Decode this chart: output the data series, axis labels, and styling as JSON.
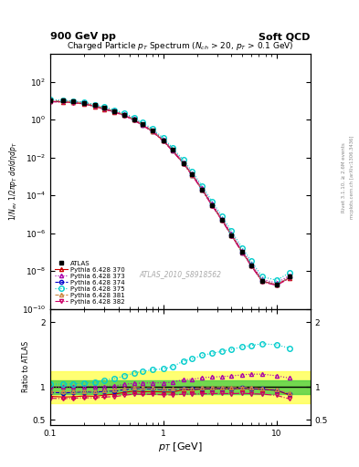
{
  "title_left": "900 GeV pp",
  "title_right": "Soft QCD",
  "plot_title": "Charged Particle $p_T$ Spectrum ($N_{ch}$ > 20, $p_T$ > 0.1 GeV)",
  "xlabel": "$p_T$ [GeV]",
  "ylabel_main": "$1/N_{ev}$ $1/2\\pi p_T$ $d\\sigma/d\\eta dp_T$",
  "ylabel_ratio": "Ratio to ATLAS",
  "watermark": "ATLAS_2010_S8918562",
  "right_label": "mcplots.cern.ch [arXiv:1306.3436]",
  "right_label2": "Rivet 3.1.10, ≥ 2.6M events",
  "xlim": [
    0.1,
    20
  ],
  "ylim_main": [
    1e-10,
    3000.0
  ],
  "ylim_ratio": [
    0.42,
    2.2
  ],
  "ratio_yticks": [
    0.5,
    1.0,
    2.0
  ],
  "green_band": [
    0.9,
    1.1
  ],
  "yellow_band": [
    0.75,
    1.25
  ],
  "series": [
    {
      "label": "ATLAS",
      "color": "#000000",
      "marker": "s",
      "markersize": 3,
      "linestyle": "none",
      "linewidth": 1.0,
      "pt": [
        0.1,
        0.13,
        0.16,
        0.2,
        0.25,
        0.3,
        0.37,
        0.45,
        0.55,
        0.65,
        0.8,
        1.0,
        1.2,
        1.5,
        1.8,
        2.2,
        2.7,
        3.3,
        4.0,
        5.0,
        6.0,
        7.5,
        10.0,
        13.0
      ],
      "val": [
        10.5,
        10.0,
        9.2,
        7.8,
        5.7,
        4.1,
        2.85,
        1.85,
        1.02,
        0.56,
        0.255,
        0.082,
        0.0255,
        0.0052,
        0.00124,
        0.000208,
        3.08e-05,
        5.12e-06,
        8.1e-07,
        1e-07,
        2e-08,
        3e-09,
        2e-09,
        5e-09
      ],
      "ratio": [
        1.0,
        1.0,
        1.0,
        1.0,
        1.0,
        1.0,
        1.0,
        1.0,
        1.0,
        1.0,
        1.0,
        1.0,
        1.0,
        1.0,
        1.0,
        1.0,
        1.0,
        1.0,
        1.0,
        1.0,
        1.0,
        1.0,
        1.0,
        1.0
      ],
      "is_data": true
    },
    {
      "label": "Pythia 6.428 370",
      "color": "#cc0000",
      "marker": "^",
      "markersize": 3,
      "linestyle": "-",
      "linewidth": 0.8,
      "pt": [
        0.1,
        0.13,
        0.16,
        0.2,
        0.25,
        0.3,
        0.37,
        0.45,
        0.55,
        0.65,
        0.8,
        1.0,
        1.2,
        1.5,
        1.8,
        2.2,
        2.7,
        3.3,
        4.0,
        5.0,
        6.0,
        7.5,
        10.0,
        13.0
      ],
      "val": [
        9.0,
        8.5,
        7.85,
        6.75,
        4.9,
        3.6,
        2.55,
        1.7,
        0.96,
        0.52,
        0.238,
        0.076,
        0.0236,
        0.005,
        0.00119,
        0.000202,
        3e-05,
        5e-06,
        7.9e-07,
        9.8e-08,
        1.95e-08,
        2.9e-09,
        1.9e-09,
        4.4e-09
      ],
      "ratio": [
        0.86,
        0.85,
        0.853,
        0.866,
        0.86,
        0.878,
        0.895,
        0.919,
        0.941,
        0.929,
        0.933,
        0.927,
        0.925,
        0.962,
        0.96,
        0.971,
        0.974,
        0.977,
        0.975,
        0.98,
        0.975,
        0.967,
        0.95,
        0.88
      ],
      "is_data": false
    },
    {
      "label": "Pythia 6.428 373",
      "color": "#aa00aa",
      "marker": "^",
      "markersize": 3,
      "linestyle": ":",
      "linewidth": 0.8,
      "pt": [
        0.1,
        0.13,
        0.16,
        0.2,
        0.25,
        0.3,
        0.37,
        0.45,
        0.55,
        0.65,
        0.8,
        1.0,
        1.2,
        1.5,
        1.8,
        2.2,
        2.7,
        3.3,
        4.0,
        5.0,
        6.0,
        7.5,
        10.0,
        13.0
      ],
      "val": [
        10.5,
        10.0,
        9.2,
        7.9,
        5.75,
        4.15,
        2.9,
        1.93,
        1.08,
        0.595,
        0.272,
        0.0875,
        0.0274,
        0.0058,
        0.00139,
        0.000238,
        3.56e-05,
        5.95e-06,
        9.5e-07,
        1.19e-07,
        2.4e-08,
        3.6e-09,
        2.35e-09,
        5.7e-09
      ],
      "ratio": [
        1.0,
        1.0,
        1.0,
        1.013,
        1.009,
        1.012,
        1.018,
        1.043,
        1.059,
        1.063,
        1.067,
        1.067,
        1.075,
        1.115,
        1.121,
        1.144,
        1.156,
        1.162,
        1.173,
        1.19,
        1.2,
        1.2,
        1.175,
        1.14
      ],
      "is_data": false
    },
    {
      "label": "Pythia 6.428 374",
      "color": "#0000cc",
      "marker": "o",
      "markersize": 3,
      "linestyle": "--",
      "linewidth": 0.8,
      "pt": [
        0.1,
        0.13,
        0.16,
        0.2,
        0.25,
        0.3,
        0.37,
        0.45,
        0.55,
        0.65,
        0.8,
        1.0,
        1.2,
        1.5,
        1.8,
        2.2,
        2.7,
        3.3,
        4.0,
        5.0,
        6.0,
        7.5,
        10.0,
        13.0
      ],
      "val": [
        9.7,
        9.1,
        8.45,
        7.25,
        5.25,
        3.84,
        2.68,
        1.78,
        1.0,
        0.547,
        0.248,
        0.079,
        0.0245,
        0.0051,
        0.00121,
        0.000204,
        3.02e-05,
        5.04e-06,
        7.94e-07,
        9.87e-08,
        1.96e-08,
        2.92e-09,
        1.91e-09,
        4.47e-09
      ],
      "ratio": [
        0.924,
        0.91,
        0.918,
        0.929,
        0.921,
        0.937,
        0.94,
        0.962,
        0.98,
        0.977,
        0.973,
        0.963,
        0.961,
        0.981,
        0.976,
        0.981,
        0.981,
        0.984,
        0.98,
        0.987,
        0.98,
        0.973,
        0.955,
        0.894
      ],
      "is_data": false
    },
    {
      "label": "Pythia 6.428 375",
      "color": "#00cccc",
      "marker": "o",
      "markersize": 4,
      "linestyle": ":",
      "linewidth": 0.8,
      "pt": [
        0.1,
        0.13,
        0.16,
        0.2,
        0.25,
        0.3,
        0.37,
        0.45,
        0.55,
        0.65,
        0.8,
        1.0,
        1.2,
        1.5,
        1.8,
        2.2,
        2.7,
        3.3,
        4.0,
        5.0,
        6.0,
        7.5,
        10.0,
        13.0
      ],
      "val": [
        11.0,
        10.45,
        9.68,
        8.3,
        6.1,
        4.55,
        3.22,
        2.17,
        1.24,
        0.695,
        0.323,
        0.105,
        0.0335,
        0.00728,
        0.00178,
        0.00031,
        4.68e-05,
        7.94e-06,
        1.28e-06,
        1.62e-07,
        3.28e-08,
        5e-09,
        3.3e-09,
        8e-09
      ],
      "ratio": [
        1.048,
        1.045,
        1.052,
        1.064,
        1.07,
        1.11,
        1.13,
        1.173,
        1.216,
        1.241,
        1.267,
        1.28,
        1.314,
        1.4,
        1.435,
        1.49,
        1.52,
        1.551,
        1.58,
        1.62,
        1.64,
        1.667,
        1.65,
        1.6
      ],
      "is_data": false
    },
    {
      "label": "Pythia 6.428 381",
      "color": "#cc8844",
      "marker": "^",
      "markersize": 3,
      "linestyle": "--",
      "linewidth": 0.8,
      "pt": [
        0.1,
        0.13,
        0.16,
        0.2,
        0.25,
        0.3,
        0.37,
        0.45,
        0.55,
        0.65,
        0.8,
        1.0,
        1.2,
        1.5,
        1.8,
        2.2,
        2.7,
        3.3,
        4.0,
        5.0,
        6.0,
        7.5,
        10.0,
        13.0
      ],
      "val": [
        9.8,
        9.3,
        8.6,
        7.35,
        5.34,
        3.9,
        2.73,
        1.81,
        1.015,
        0.555,
        0.252,
        0.08,
        0.0248,
        0.00512,
        0.00122,
        0.000206,
        3.06e-05,
        5.1e-06,
        8.04e-07,
        9.98e-08,
        1.98e-08,
        2.95e-09,
        1.93e-09,
        4.52e-09
      ],
      "ratio": [
        0.933,
        0.93,
        0.935,
        0.942,
        0.937,
        0.951,
        0.958,
        0.978,
        0.995,
        0.991,
        0.988,
        0.976,
        0.973,
        0.985,
        0.984,
        0.99,
        0.994,
        0.996,
        0.993,
        0.998,
        0.99,
        0.983,
        0.965,
        0.904
      ],
      "is_data": false
    },
    {
      "label": "Pythia 6.428 382",
      "color": "#cc0066",
      "marker": "v",
      "markersize": 3,
      "linestyle": "-.",
      "linewidth": 0.8,
      "pt": [
        0.1,
        0.13,
        0.16,
        0.2,
        0.25,
        0.3,
        0.37,
        0.45,
        0.55,
        0.65,
        0.8,
        1.0,
        1.2,
        1.5,
        1.8,
        2.2,
        2.7,
        3.3,
        4.0,
        5.0,
        6.0,
        7.5,
        10.0,
        13.0
      ],
      "val": [
        8.7,
        8.25,
        7.63,
        6.54,
        4.76,
        3.48,
        2.44,
        1.62,
        0.912,
        0.499,
        0.227,
        0.0724,
        0.0225,
        0.00464,
        0.00111,
        0.000187,
        2.78e-05,
        4.63e-06,
        7.3e-07,
        9.07e-08,
        1.8e-08,
        2.68e-09,
        1.75e-09,
        4.1e-09
      ],
      "ratio": [
        0.829,
        0.825,
        0.829,
        0.839,
        0.835,
        0.849,
        0.856,
        0.876,
        0.894,
        0.891,
        0.89,
        0.883,
        0.882,
        0.892,
        0.895,
        0.899,
        0.903,
        0.904,
        0.901,
        0.907,
        0.9,
        0.893,
        0.875,
        0.82
      ],
      "is_data": false
    }
  ]
}
